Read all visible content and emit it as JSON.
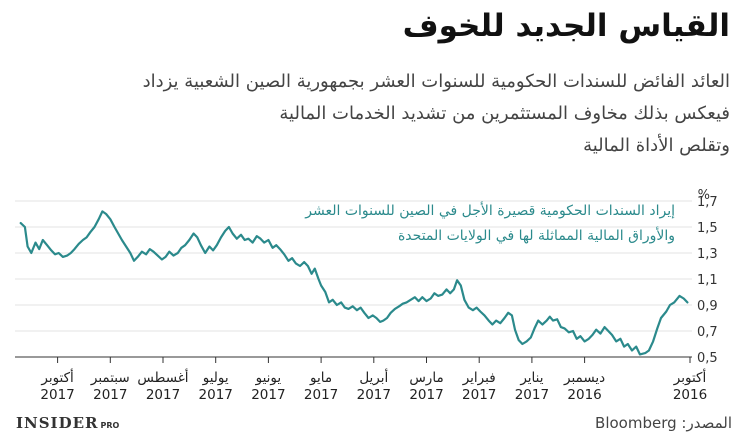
{
  "title": "القياس الجديد للخوف",
  "subtitle": [
    "العائد الفائض للسندات الحكومية للسنوات العشر بجمهورية الصين الشعبية يزداد",
    "فيعكس بذلك مخاوف المستثمرين من تشديد الخدمات المالية",
    "وتقلص الأداة المالية"
  ],
  "footer": {
    "brand": "INSIDER",
    "brand_suffix": "PRO",
    "source": "المصدر: Bloomberg"
  },
  "colors": {
    "line": "#2b8a8c",
    "axis": "#333333",
    "grid": "#e3e3e3"
  },
  "chart_data": {
    "type": "line",
    "ylabel": "%",
    "ylim": [
      0.5,
      1.7
    ],
    "yticks": [
      "1,7",
      "1,5",
      "1,3",
      "1,1",
      "0,9",
      "0,7",
      "0,5"
    ],
    "y_tick_values": [
      1.7,
      1.5,
      1.3,
      1.1,
      0.9,
      0.7,
      0.5
    ],
    "x_direction": "right-to-left",
    "x_ticks": [
      {
        "month": "أكتوبر",
        "year": "2016",
        "pos": 0
      },
      {
        "month": "ديسمبر",
        "year": "2016",
        "pos": 2
      },
      {
        "month": "يناير",
        "year": "2017",
        "pos": 3
      },
      {
        "month": "فبراير",
        "year": "2017",
        "pos": 4
      },
      {
        "month": "مارس",
        "year": "2017",
        "pos": 5
      },
      {
        "month": "أبريل",
        "year": "2017",
        "pos": 6
      },
      {
        "month": "مايو",
        "year": "2017",
        "pos": 7
      },
      {
        "month": "يونيو",
        "year": "2017",
        "pos": 8
      },
      {
        "month": "يوليو",
        "year": "2017",
        "pos": 9
      },
      {
        "month": "أغسطس",
        "year": "2017",
        "pos": 10
      },
      {
        "month": "سبتمبر",
        "year": "2017",
        "pos": 11
      },
      {
        "month": "أكتوبر",
        "year": "2017",
        "pos": 12
      }
    ],
    "xlim": [
      0,
      12.7
    ],
    "legend": [
      "إيراد السندات الحكومية قصيرة الأجل في الصين للسنوات العشر",
      "والأوراق المالية المماثلة لها في الولايات المتحدة"
    ],
    "legend_position": "top-right",
    "series": [
      {
        "points": [
          [
            0.05,
            0.92
          ],
          [
            0.12,
            0.95
          ],
          [
            0.2,
            0.97
          ],
          [
            0.3,
            0.92
          ],
          [
            0.38,
            0.9
          ],
          [
            0.45,
            0.85
          ],
          [
            0.55,
            0.8
          ],
          [
            0.62,
            0.72
          ],
          [
            0.7,
            0.62
          ],
          [
            0.78,
            0.55
          ],
          [
            0.85,
            0.53
          ],
          [
            0.95,
            0.52
          ],
          [
            1.02,
            0.58
          ],
          [
            1.1,
            0.55
          ],
          [
            1.18,
            0.6
          ],
          [
            1.25,
            0.58
          ],
          [
            1.32,
            0.64
          ],
          [
            1.4,
            0.62
          ],
          [
            1.48,
            0.67
          ],
          [
            1.55,
            0.7
          ],
          [
            1.62,
            0.73
          ],
          [
            1.7,
            0.68
          ],
          [
            1.78,
            0.71
          ],
          [
            1.85,
            0.67
          ],
          [
            1.92,
            0.64
          ],
          [
            2.0,
            0.62
          ],
          [
            2.08,
            0.66
          ],
          [
            2.15,
            0.64
          ],
          [
            2.22,
            0.7
          ],
          [
            2.3,
            0.69
          ],
          [
            2.38,
            0.72
          ],
          [
            2.45,
            0.73
          ],
          [
            2.52,
            0.79
          ],
          [
            2.6,
            0.78
          ],
          [
            2.66,
            0.81
          ],
          [
            2.72,
            0.78
          ],
          [
            2.8,
            0.75
          ],
          [
            2.88,
            0.78
          ],
          [
            2.95,
            0.72
          ],
          [
            3.02,
            0.65
          ],
          [
            3.1,
            0.62
          ],
          [
            3.18,
            0.6
          ],
          [
            3.25,
            0.63
          ],
          [
            3.32,
            0.71
          ],
          [
            3.38,
            0.82
          ],
          [
            3.45,
            0.84
          ],
          [
            3.52,
            0.8
          ],
          [
            3.6,
            0.76
          ],
          [
            3.68,
            0.78
          ],
          [
            3.75,
            0.75
          ],
          [
            3.82,
            0.78
          ],
          [
            3.9,
            0.82
          ],
          [
            3.98,
            0.85
          ],
          [
            4.05,
            0.88
          ],
          [
            4.12,
            0.86
          ],
          [
            4.2,
            0.88
          ],
          [
            4.28,
            0.94
          ],
          [
            4.35,
            1.05
          ],
          [
            4.42,
            1.09
          ],
          [
            4.48,
            1.02
          ],
          [
            4.55,
            0.99
          ],
          [
            4.62,
            1.02
          ],
          [
            4.7,
            0.98
          ],
          [
            4.78,
            0.97
          ],
          [
            4.85,
            0.99
          ],
          [
            4.92,
            0.95
          ],
          [
            5.0,
            0.93
          ],
          [
            5.08,
            0.96
          ],
          [
            5.15,
            0.93
          ],
          [
            5.22,
            0.96
          ],
          [
            5.3,
            0.94
          ],
          [
            5.38,
            0.92
          ],
          [
            5.45,
            0.91
          ],
          [
            5.52,
            0.89
          ],
          [
            5.6,
            0.87
          ],
          [
            5.68,
            0.84
          ],
          [
            5.75,
            0.8
          ],
          [
            5.82,
            0.78
          ],
          [
            5.88,
            0.77
          ],
          [
            5.95,
            0.8
          ],
          [
            6.02,
            0.82
          ],
          [
            6.1,
            0.8
          ],
          [
            6.18,
            0.84
          ],
          [
            6.25,
            0.88
          ],
          [
            6.32,
            0.86
          ],
          [
            6.4,
            0.89
          ],
          [
            6.48,
            0.87
          ],
          [
            6.55,
            0.88
          ],
          [
            6.62,
            0.92
          ],
          [
            6.7,
            0.9
          ],
          [
            6.78,
            0.94
          ],
          [
            6.85,
            0.92
          ],
          [
            6.92,
            1.0
          ],
          [
            7.0,
            1.05
          ],
          [
            7.05,
            1.1
          ],
          [
            7.12,
            1.18
          ],
          [
            7.18,
            1.14
          ],
          [
            7.25,
            1.2
          ],
          [
            7.32,
            1.23
          ],
          [
            7.4,
            1.2
          ],
          [
            7.48,
            1.22
          ],
          [
            7.55,
            1.26
          ],
          [
            7.62,
            1.24
          ],
          [
            7.7,
            1.29
          ],
          [
            7.78,
            1.33
          ],
          [
            7.85,
            1.36
          ],
          [
            7.92,
            1.34
          ],
          [
            8.0,
            1.4
          ],
          [
            8.08,
            1.38
          ],
          [
            8.15,
            1.41
          ],
          [
            8.22,
            1.43
          ],
          [
            8.3,
            1.38
          ],
          [
            8.38,
            1.41
          ],
          [
            8.45,
            1.4
          ],
          [
            8.52,
            1.44
          ],
          [
            8.6,
            1.41
          ],
          [
            8.68,
            1.45
          ],
          [
            8.75,
            1.5
          ],
          [
            8.82,
            1.47
          ],
          [
            8.9,
            1.42
          ],
          [
            8.98,
            1.36
          ],
          [
            9.05,
            1.32
          ],
          [
            9.12,
            1.35
          ],
          [
            9.2,
            1.3
          ],
          [
            9.28,
            1.36
          ],
          [
            9.35,
            1.42
          ],
          [
            9.42,
            1.45
          ],
          [
            9.5,
            1.4
          ],
          [
            9.58,
            1.36
          ],
          [
            9.65,
            1.34
          ],
          [
            9.72,
            1.3
          ],
          [
            9.8,
            1.28
          ],
          [
            9.88,
            1.31
          ],
          [
            9.95,
            1.27
          ],
          [
            10.02,
            1.25
          ],
          [
            10.1,
            1.28
          ],
          [
            10.18,
            1.31
          ],
          [
            10.25,
            1.33
          ],
          [
            10.32,
            1.29
          ],
          [
            10.4,
            1.31
          ],
          [
            10.48,
            1.27
          ],
          [
            10.55,
            1.24
          ],
          [
            10.62,
            1.3
          ],
          [
            10.7,
            1.35
          ],
          [
            10.78,
            1.4
          ],
          [
            10.85,
            1.45
          ],
          [
            10.92,
            1.5
          ],
          [
            11.0,
            1.56
          ],
          [
            11.08,
            1.6
          ],
          [
            11.15,
            1.62
          ],
          [
            11.22,
            1.56
          ],
          [
            11.3,
            1.5
          ],
          [
            11.38,
            1.46
          ],
          [
            11.45,
            1.42
          ],
          [
            11.52,
            1.4
          ],
          [
            11.6,
            1.37
          ],
          [
            11.68,
            1.33
          ],
          [
            11.75,
            1.3
          ],
          [
            11.82,
            1.28
          ],
          [
            11.9,
            1.27
          ],
          [
            11.98,
            1.3
          ],
          [
            12.05,
            1.29
          ],
          [
            12.12,
            1.32
          ],
          [
            12.2,
            1.36
          ],
          [
            12.28,
            1.4
          ],
          [
            12.35,
            1.33
          ],
          [
            12.42,
            1.38
          ],
          [
            12.5,
            1.3
          ],
          [
            12.57,
            1.35
          ],
          [
            12.62,
            1.5
          ],
          [
            12.7,
            1.53
          ]
        ]
      }
    ]
  }
}
